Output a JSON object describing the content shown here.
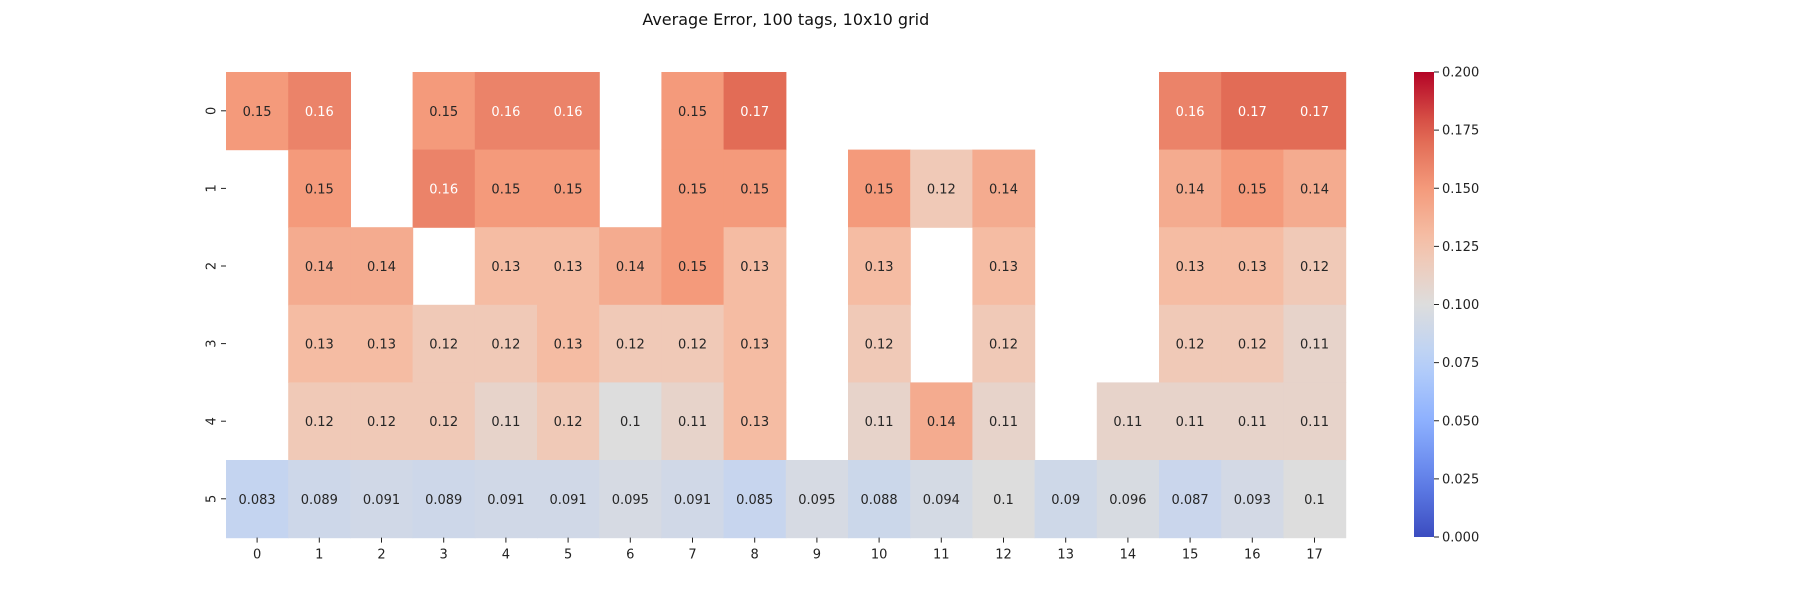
{
  "chart_data": {
    "type": "heatmap",
    "title": "Average Error, 100 tags, 10x10 grid",
    "xlabel": "",
    "ylabel": "",
    "x_categories": [
      "0",
      "1",
      "2",
      "3",
      "4",
      "5",
      "6",
      "7",
      "8",
      "9",
      "10",
      "11",
      "12",
      "13",
      "14",
      "15",
      "16",
      "17"
    ],
    "y_categories": [
      "0",
      "1",
      "2",
      "3",
      "4",
      "5"
    ],
    "values": [
      [
        0.15,
        0.16,
        null,
        0.15,
        0.16,
        0.16,
        null,
        0.15,
        0.17,
        null,
        null,
        null,
        null,
        null,
        null,
        0.16,
        0.17,
        0.17
      ],
      [
        null,
        0.15,
        null,
        0.16,
        0.15,
        0.15,
        null,
        0.15,
        0.15,
        null,
        0.15,
        0.12,
        0.14,
        null,
        null,
        0.14,
        0.15,
        0.14
      ],
      [
        null,
        0.14,
        0.14,
        null,
        0.13,
        0.13,
        0.14,
        0.15,
        0.13,
        null,
        0.13,
        null,
        0.13,
        null,
        null,
        0.13,
        0.13,
        0.12
      ],
      [
        null,
        0.13,
        0.13,
        0.12,
        0.12,
        0.13,
        0.12,
        0.12,
        0.13,
        null,
        0.12,
        null,
        0.12,
        null,
        null,
        0.12,
        0.12,
        0.11
      ],
      [
        null,
        0.12,
        0.12,
        0.12,
        0.11,
        0.12,
        0.1,
        0.11,
        0.13,
        null,
        0.11,
        0.14,
        0.11,
        null,
        0.11,
        0.11,
        0.11,
        0.11
      ],
      [
        0.083,
        0.089,
        0.091,
        0.089,
        0.091,
        0.091,
        0.095,
        0.091,
        0.085,
        0.095,
        0.088,
        0.094,
        0.1,
        0.09,
        0.096,
        0.087,
        0.093,
        0.1
      ]
    ],
    "colorbar": {
      "min": 0.0,
      "max": 0.2,
      "ticks": [
        "0.000",
        "0.025",
        "0.050",
        "0.075",
        "0.100",
        "0.125",
        "0.150",
        "0.175",
        "0.200"
      ],
      "colormap": "coolwarm"
    }
  }
}
